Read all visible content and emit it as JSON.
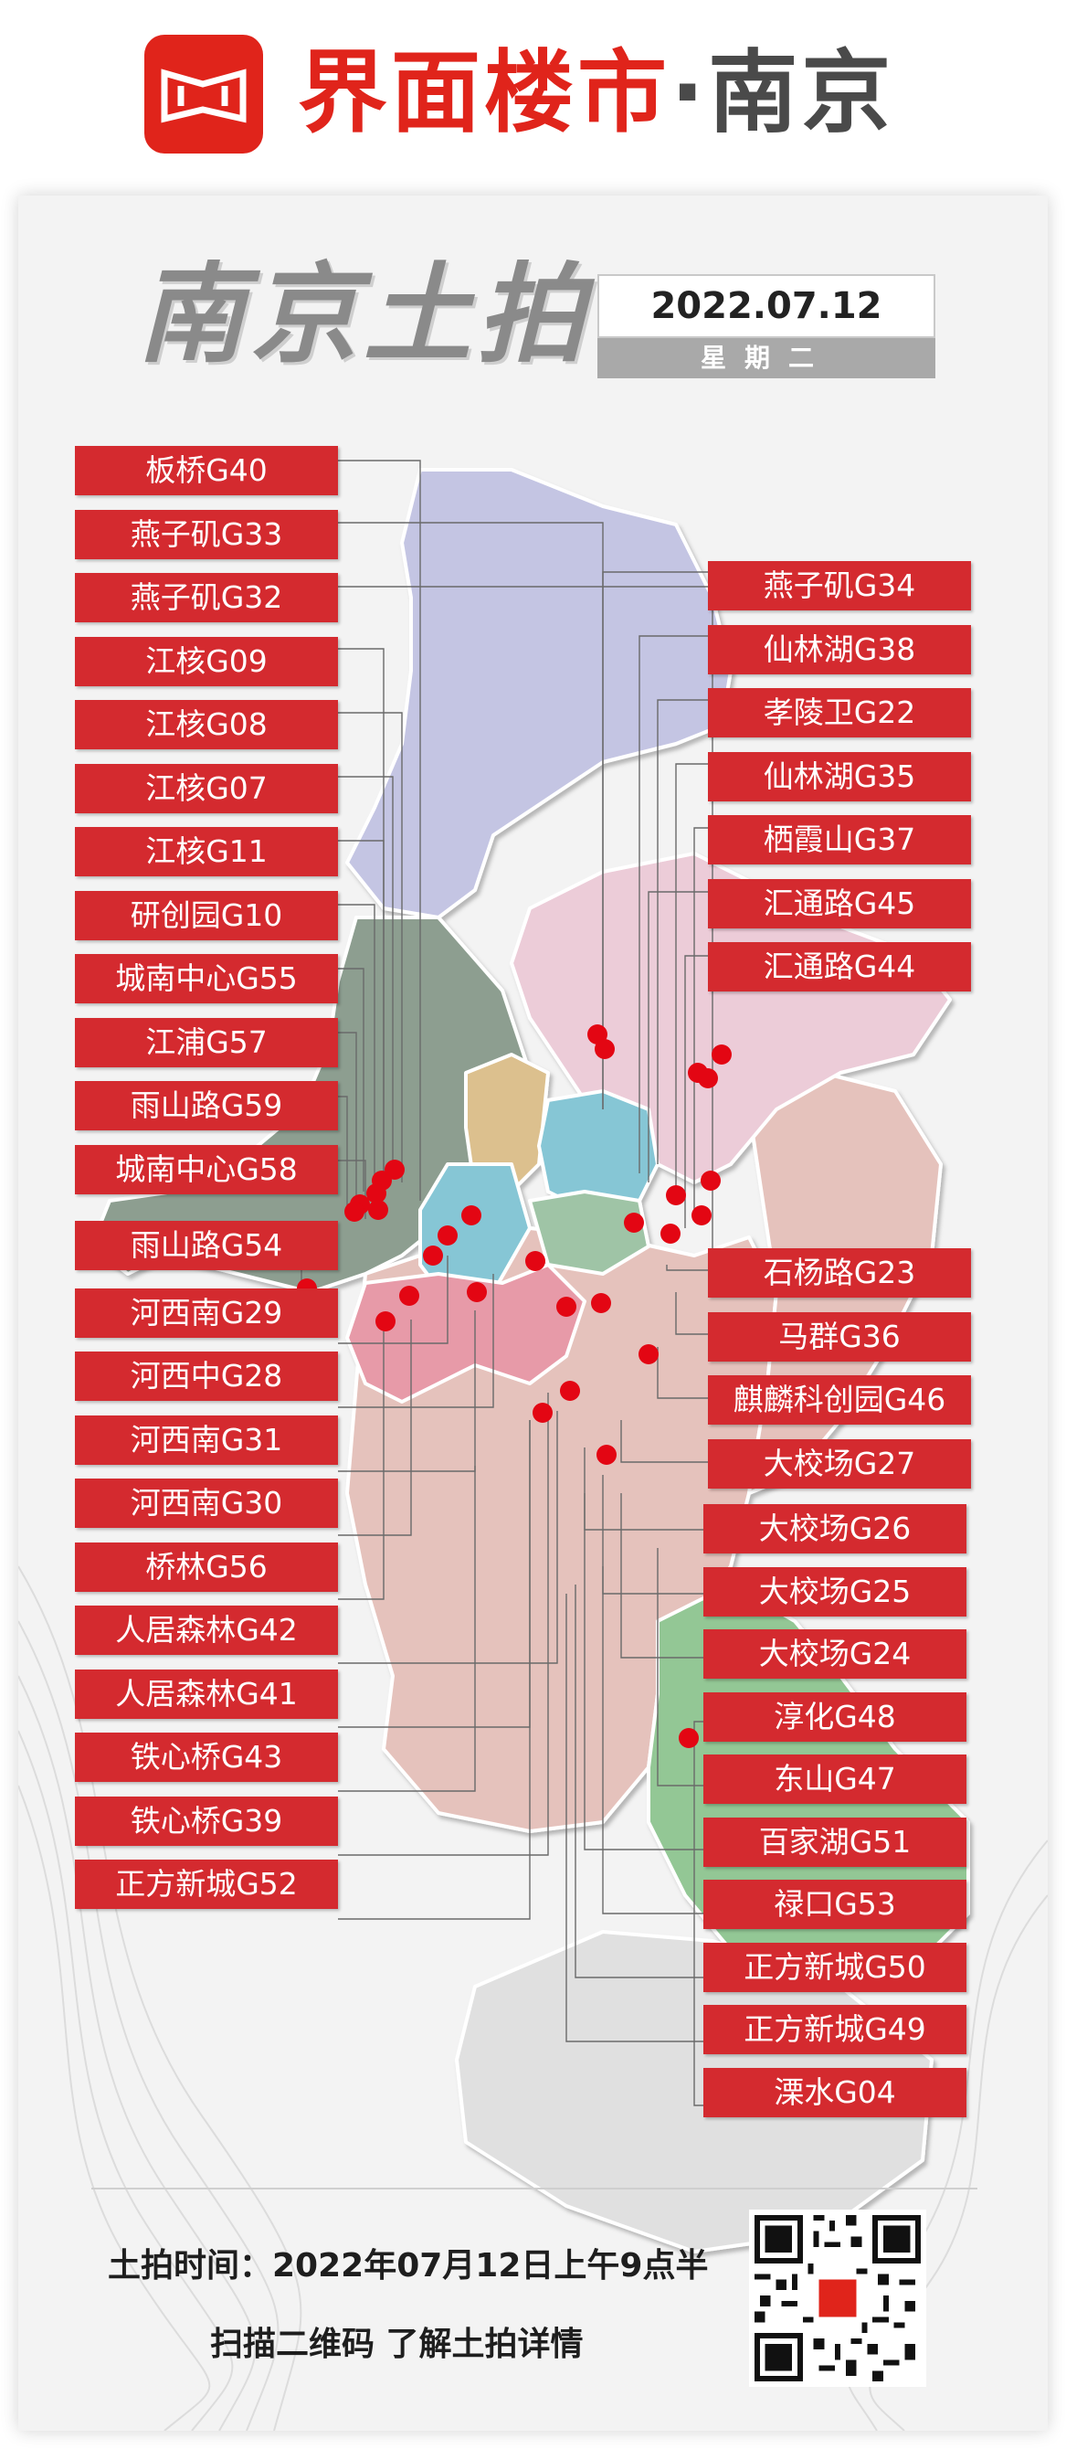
{
  "header": {
    "brand_red": "界面楼市",
    "brand_dot": "·",
    "brand_city": "南京",
    "logo_icon": "jiemian-logo-icon",
    "accent_color": "#e0241b"
  },
  "title": {
    "heading": "南京土拍",
    "date": "2022.07.12",
    "weekday": "星期二"
  },
  "map": {
    "region_colors": [
      "#c4c5e3",
      "#8d9e90",
      "#ecccd8",
      "#dcc08e",
      "#86c6d5",
      "#9fc4a6",
      "#e79aa8",
      "#e5c2bc",
      "#93c795",
      "#e0e0e0"
    ],
    "marker_color": "#e30613"
  },
  "left_labels": [
    "板桥G40",
    "燕子矶G33",
    "燕子矶G32",
    "江核G09",
    "江核G08",
    "江核G07",
    "江核G11",
    "研创园G10",
    "城南中心G55",
    "江浦G57",
    "雨山路G59",
    "城南中心G58",
    "雨山路G54",
    "河西南G29",
    "河西中G28",
    "河西南G31",
    "河西南G30",
    "桥林G56",
    "人居森林G42",
    "人居森林G41",
    "铁心桥G43",
    "铁心桥G39",
    "正方新城G52"
  ],
  "right_labels": [
    "燕子矶G34",
    "仙林湖G38",
    "孝陵卫G22",
    "仙林湖G35",
    "栖霞山G37",
    "汇通路G45",
    "汇通路G44",
    "石杨路G23",
    "马群G36",
    "麒麟科创园G46",
    "大校场G27",
    "大校场G26",
    "大校场G25",
    "大校场G24",
    "淳化G48",
    "东山G47",
    "百家湖G51",
    "禄口G53",
    "正方新城G50",
    "正方新城G49",
    "溧水G04"
  ],
  "footer": {
    "auction_time": "土拍时间：2022年07月12日上午9点半",
    "scan_text": "扫描二维码  了解土拍详情",
    "qr_icon": "qr-code-icon"
  }
}
